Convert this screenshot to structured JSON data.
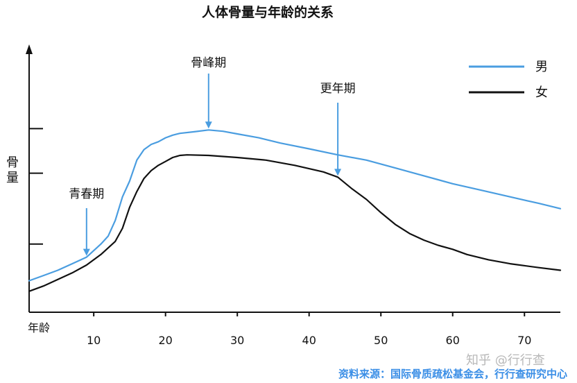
{
  "chart_data": {
    "type": "line",
    "title": "人体骨量与年龄的关系",
    "xlabel": "年龄",
    "ylabel": "骨量",
    "xlim": [
      1,
      75
    ],
    "ylim": [
      0,
      100
    ],
    "x_ticks": [
      10,
      20,
      30,
      40,
      50,
      60,
      70
    ],
    "y_ticks": [
      26,
      53,
      70
    ],
    "grid": false,
    "legend_position": "top-right",
    "series": [
      {
        "name": "男",
        "color": "#4a9de0",
        "points": [
          [
            1,
            12
          ],
          [
            3,
            14
          ],
          [
            5,
            16
          ],
          [
            7,
            18.5
          ],
          [
            9,
            21
          ],
          [
            11,
            26
          ],
          [
            12,
            29
          ],
          [
            13,
            35
          ],
          [
            14,
            44
          ],
          [
            15,
            50
          ],
          [
            16,
            58
          ],
          [
            17,
            62
          ],
          [
            18,
            64
          ],
          [
            19,
            65
          ],
          [
            20,
            66.5
          ],
          [
            21,
            67.5
          ],
          [
            22,
            68.2
          ],
          [
            24,
            68.8
          ],
          [
            26,
            69.5
          ],
          [
            28,
            69
          ],
          [
            30,
            68
          ],
          [
            33,
            66.5
          ],
          [
            36,
            64.5
          ],
          [
            40,
            62.3
          ],
          [
            44,
            60
          ],
          [
            48,
            58
          ],
          [
            52,
            55
          ],
          [
            56,
            52
          ],
          [
            60,
            49
          ],
          [
            64,
            46.5
          ],
          [
            68,
            44
          ],
          [
            72,
            41.5
          ],
          [
            75,
            39.5
          ]
        ]
      },
      {
        "name": "女",
        "color": "#111111",
        "points": [
          [
            1,
            8
          ],
          [
            3,
            10
          ],
          [
            5,
            12.5
          ],
          [
            7,
            15
          ],
          [
            9,
            18
          ],
          [
            11,
            22
          ],
          [
            13,
            27
          ],
          [
            14,
            32
          ],
          [
            15,
            40
          ],
          [
            16,
            46
          ],
          [
            17,
            51
          ],
          [
            18,
            54
          ],
          [
            19,
            56
          ],
          [
            20,
            57.5
          ],
          [
            21,
            59
          ],
          [
            22,
            59.8
          ],
          [
            23,
            60
          ],
          [
            26,
            59.8
          ],
          [
            30,
            59
          ],
          [
            34,
            58
          ],
          [
            38,
            56
          ],
          [
            42,
            53.5
          ],
          [
            44,
            51.5
          ],
          [
            46,
            47
          ],
          [
            48,
            43
          ],
          [
            50,
            38
          ],
          [
            52,
            33.5
          ],
          [
            54,
            30
          ],
          [
            56,
            27.5
          ],
          [
            58,
            25.5
          ],
          [
            60,
            24
          ],
          [
            62,
            22
          ],
          [
            65,
            20
          ],
          [
            68,
            18.5
          ],
          [
            72,
            17
          ],
          [
            75,
            16
          ]
        ]
      }
    ],
    "annotations": [
      {
        "text": "青春期",
        "x": 9,
        "color": "#4a9de0"
      },
      {
        "text": "骨峰期",
        "x": 26,
        "color": "#4a9de0"
      },
      {
        "text": "更年期",
        "x": 44,
        "color": "#4a9de0"
      }
    ]
  },
  "source": "资料来源：国际骨质疏松基金会，行行查研究中心",
  "watermark": "知乎 @行行查"
}
